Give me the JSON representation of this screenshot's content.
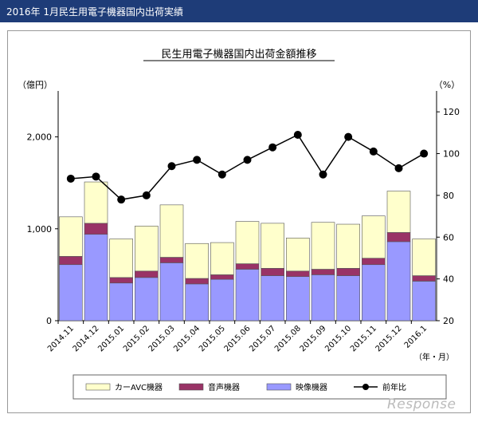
{
  "header": {
    "title": "2016年 1月民生用電子機器国内出荷実績"
  },
  "watermark": {
    "text": "Response"
  },
  "colors": {
    "header_bg": "#1e3c78",
    "car_avc": "#ffffcc",
    "audio": "#993366",
    "video": "#9999ff",
    "line": "#000000"
  },
  "chart_data": {
    "type": "bar",
    "stacked": true,
    "title": "民生用電子機器国内出荷金額推移",
    "ylabel_left": "（億円）",
    "ylabel_right": "（%）",
    "xlabel": "（年・月）",
    "categories": [
      "2014.11",
      "2014.12",
      "2015.01",
      "2015.02",
      "2015.03",
      "2015.04",
      "2015.05",
      "2015.06",
      "2015.07",
      "2015.08",
      "2015.09",
      "2015.10",
      "2015.11",
      "2015.12",
      "2016.1"
    ],
    "ylim": [
      0,
      2500
    ],
    "yticks": [
      0,
      1000,
      2000
    ],
    "ytick_labels": [
      "0",
      "1,000",
      "2,000"
    ],
    "y2lim": [
      20,
      130
    ],
    "y2ticks": [
      20,
      40,
      60,
      80,
      100,
      120
    ],
    "series": [
      {
        "name": "映像機器",
        "values": [
          610,
          940,
          410,
          470,
          630,
          400,
          450,
          560,
          490,
          480,
          500,
          490,
          610,
          860,
          430
        ]
      },
      {
        "name": "音声機器",
        "values": [
          90,
          120,
          60,
          70,
          60,
          60,
          50,
          60,
          80,
          60,
          60,
          80,
          70,
          100,
          60
        ]
      },
      {
        "name": "カーAVC機器",
        "values": [
          430,
          450,
          420,
          490,
          570,
          380,
          350,
          460,
          490,
          360,
          510,
          480,
          460,
          450,
          400
        ]
      }
    ],
    "line": {
      "name": "前年比",
      "values": [
        88,
        89,
        78,
        80,
        94,
        97,
        90,
        97,
        103,
        109,
        90,
        108,
        101,
        93,
        100
      ]
    },
    "legend_position": "bottom"
  }
}
